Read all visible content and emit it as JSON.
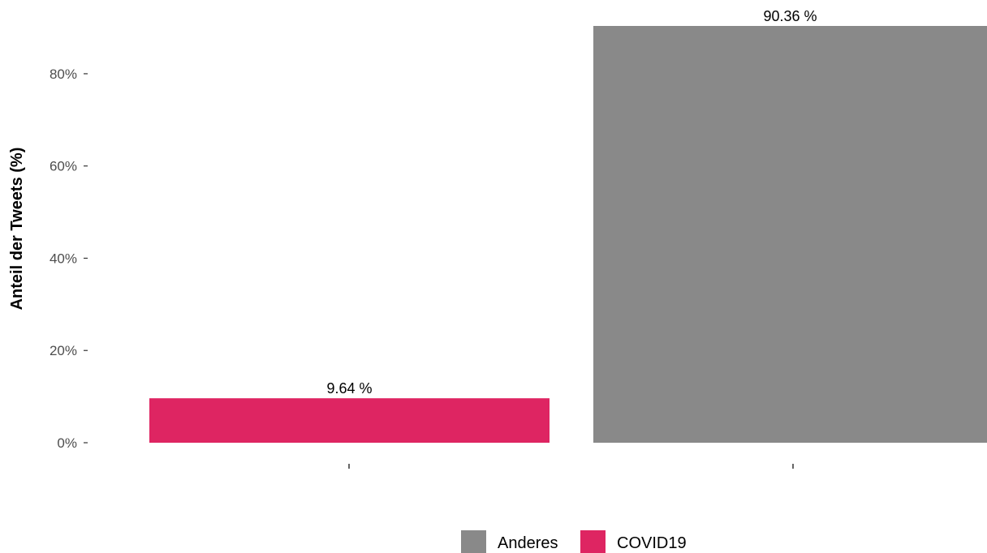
{
  "chart_data": {
    "type": "bar",
    "categories": [
      "COVID19",
      "Anderes"
    ],
    "values": [
      9.64,
      90.36
    ],
    "value_labels": [
      "9.64 %",
      "90.36 %"
    ],
    "ylabel": "Anteil der Tweets (%)",
    "ylim": [
      0,
      90.36
    ],
    "yticks": [
      0,
      20,
      40,
      60,
      80
    ],
    "ytick_labels": [
      "0%",
      "20%",
      "40%",
      "60%",
      "80%"
    ],
    "grid": false,
    "legend_position": "bottom",
    "legend": [
      {
        "label": "Anderes",
        "color": "#898989"
      },
      {
        "label": "COVID19",
        "color": "#DE2562"
      }
    ],
    "colors": {
      "COVID19": "#DE2562",
      "Anderes": "#898989"
    }
  }
}
